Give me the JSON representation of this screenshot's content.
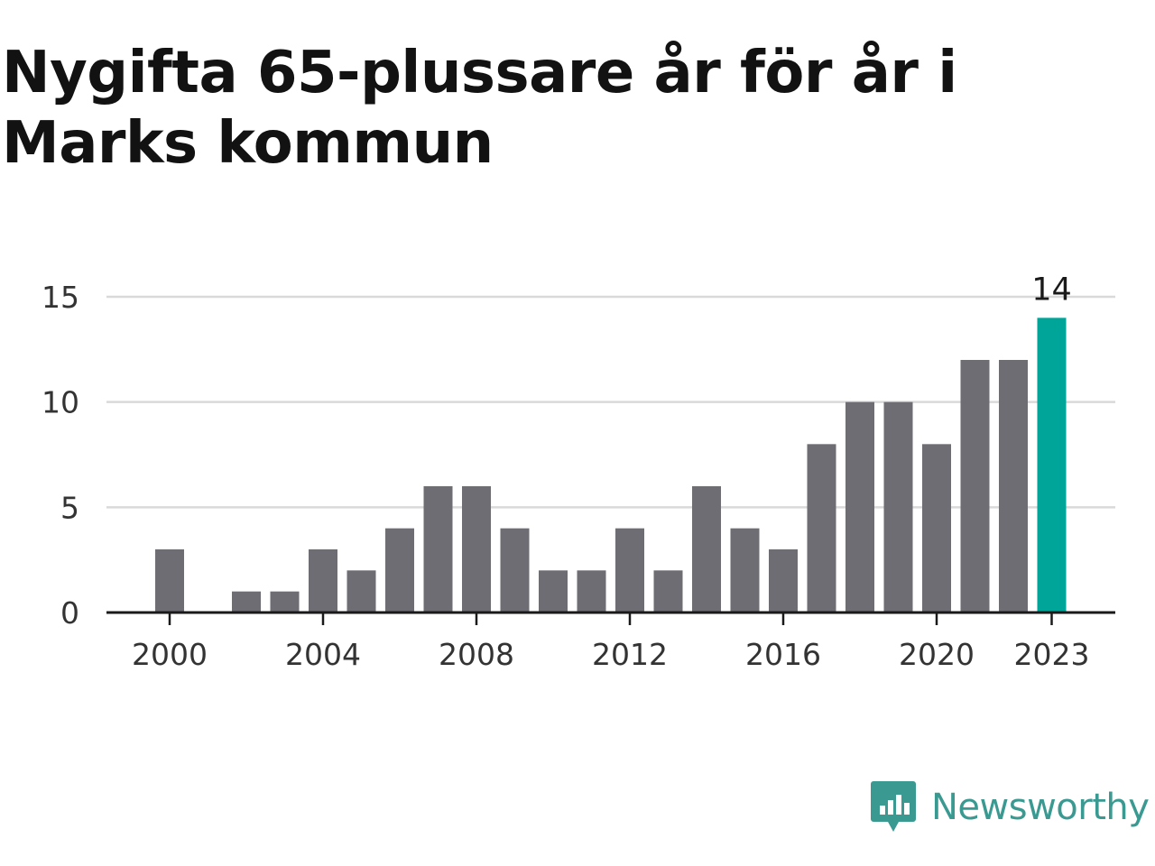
{
  "colors": {
    "bar": "#6e6d73",
    "highlight": "#00a599",
    "grid": "#d9d9d9",
    "axis": "#1a1a1a",
    "brand": "#3a9a92"
  },
  "brand": {
    "name": "Newsworthy",
    "icon": "newsworthy-logo-icon"
  },
  "chart_data": {
    "type": "bar",
    "title": "Nygifta 65-plussare år för år i Marks kommun",
    "xlabel": "",
    "ylabel": "",
    "x": [
      2000,
      2001,
      2002,
      2003,
      2004,
      2005,
      2006,
      2007,
      2008,
      2009,
      2010,
      2011,
      2012,
      2013,
      2014,
      2015,
      2016,
      2017,
      2018,
      2019,
      2020,
      2021,
      2022,
      2023
    ],
    "values": [
      3,
      0,
      1,
      1,
      3,
      2,
      4,
      6,
      6,
      4,
      2,
      2,
      4,
      2,
      6,
      4,
      3,
      8,
      10,
      10,
      8,
      12,
      12,
      14
    ],
    "ylim": [
      0,
      15
    ],
    "yticks": [
      0,
      5,
      10,
      15
    ],
    "ytick_labels": [
      "0",
      "5",
      "10",
      "15"
    ],
    "xticks": [
      2000,
      2004,
      2008,
      2012,
      2016,
      2020,
      2023
    ],
    "xtick_labels": [
      "2000",
      "2004",
      "2008",
      "2012",
      "2016",
      "2020",
      "2023"
    ],
    "highlight": {
      "x": 2023,
      "label": "14"
    },
    "grid": true,
    "legend": "none"
  }
}
